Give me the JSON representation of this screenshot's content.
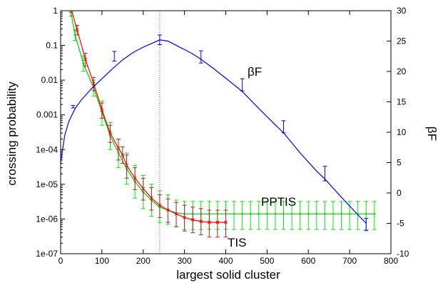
{
  "chart_data": {
    "type": "line",
    "title": "",
    "xlabel": "largest solid cluster",
    "ylabel_left": "crossing probability",
    "ylabel_right": "βF",
    "xlim": [
      0,
      800
    ],
    "ylim_left": [
      1e-07,
      1
    ],
    "yscale_left": "log",
    "ylim_right": [
      -10,
      30
    ],
    "grid": false,
    "x_ticks": [
      "0",
      "100",
      "200",
      "300",
      "400",
      "500",
      "600",
      "700",
      "800"
    ],
    "y_left_ticks": [
      "1e-07",
      "1e-06",
      "1e-05",
      "1e-04",
      "0.001",
      "0.01",
      "0.1",
      "1"
    ],
    "y_right_ticks": [
      "-10",
      "-5",
      "0",
      "5",
      "10",
      "15",
      "20",
      "25",
      "30"
    ],
    "vertical_marker_x": 240,
    "annotations": [
      {
        "text": "βF",
        "series": "βF"
      },
      {
        "text": "PPTIS",
        "series": "PPTIS"
      },
      {
        "text": "TIS",
        "series": "TIS"
      }
    ],
    "series": [
      {
        "name": "TIS",
        "axis": "left",
        "color": "#ff0000",
        "error_color": "#a52a2a",
        "points": [
          {
            "x": 25,
            "y": 1.2,
            "lo": 0.9,
            "hi": 1.5
          },
          {
            "x": 40,
            "y": 0.28,
            "lo": 0.2,
            "hi": 0.38
          },
          {
            "x": 60,
            "y": 0.04,
            "lo": 0.025,
            "hi": 0.06
          },
          {
            "x": 80,
            "y": 0.008,
            "lo": 0.005,
            "hi": 0.012
          },
          {
            "x": 100,
            "y": 0.0014,
            "lo": 0.0008,
            "hi": 0.0022
          },
          {
            "x": 120,
            "y": 0.0003,
            "lo": 0.00016,
            "hi": 0.0005
          },
          {
            "x": 140,
            "y": 0.00011,
            "lo": 5e-05,
            "hi": 0.0002
          },
          {
            "x": 150,
            "y": 7e-05,
            "lo": 4e-05,
            "hi": 0.00012
          },
          {
            "x": 160,
            "y": 3.5e-05,
            "lo": 1.5e-05,
            "hi": 7e-05
          },
          {
            "x": 180,
            "y": 1.5e-05,
            "lo": 7e-06,
            "hi": 3e-05
          },
          {
            "x": 200,
            "y": 7.5e-06,
            "lo": 3.5e-06,
            "hi": 1.5e-05
          },
          {
            "x": 220,
            "y": 4e-06,
            "lo": 1.8e-06,
            "hi": 8e-06
          },
          {
            "x": 240,
            "y": 2.5e-06,
            "lo": 1.1e-06,
            "hi": 5e-06
          },
          {
            "x": 260,
            "y": 1.8e-06,
            "lo": 8e-07,
            "hi": 3.8e-06
          },
          {
            "x": 280,
            "y": 1.4e-06,
            "lo": 6e-07,
            "hi": 3e-06
          },
          {
            "x": 300,
            "y": 1.1e-06,
            "lo": 4.5e-07,
            "hi": 2.5e-06
          },
          {
            "x": 320,
            "y": 9.5e-07,
            "lo": 4e-07,
            "hi": 2.2e-06
          },
          {
            "x": 340,
            "y": 8.5e-07,
            "lo": 3.5e-07,
            "hi": 2e-06
          },
          {
            "x": 360,
            "y": 8e-07,
            "lo": 3e-07,
            "hi": 1.8e-06
          },
          {
            "x": 380,
            "y": 8e-07,
            "lo": 3e-07,
            "hi": 1.8e-06
          },
          {
            "x": 400,
            "y": 8e-07,
            "lo": 3e-07,
            "hi": 1.8e-06
          }
        ]
      },
      {
        "name": "PPTIS",
        "axis": "left",
        "color": "#00cc00",
        "error_color": "#00ee00",
        "points": [
          {
            "x": 25,
            "y": 0.9,
            "lo": 0.7,
            "hi": 1.1
          },
          {
            "x": 35,
            "y": 0.2,
            "lo": 0.14,
            "hi": 0.28
          },
          {
            "x": 55,
            "y": 0.03,
            "lo": 0.018,
            "hi": 0.05
          },
          {
            "x": 80,
            "y": 0.006,
            "lo": 0.0035,
            "hi": 0.01
          },
          {
            "x": 100,
            "y": 0.0012,
            "lo": 0.0005,
            "hi": 0.0025
          },
          {
            "x": 120,
            "y": 0.00025,
            "lo": 0.0001,
            "hi": 0.0006
          },
          {
            "x": 140,
            "y": 8e-05,
            "lo": 3e-05,
            "hi": 0.0002
          },
          {
            "x": 160,
            "y": 2.8e-05,
            "lo": 1e-05,
            "hi": 8e-05
          },
          {
            "x": 180,
            "y": 1.2e-05,
            "lo": 4e-06,
            "hi": 3.5e-05
          },
          {
            "x": 200,
            "y": 6e-06,
            "lo": 2e-06,
            "hi": 1.8e-05
          },
          {
            "x": 220,
            "y": 3.5e-06,
            "lo": 1.2e-06,
            "hi": 1e-05
          },
          {
            "x": 240,
            "y": 2.2e-06,
            "lo": 8e-07,
            "hi": 6.5e-06
          },
          {
            "x": 260,
            "y": 1.8e-06,
            "lo": 7e-07,
            "hi": 5e-06
          },
          {
            "x": 280,
            "y": 1.5e-06,
            "lo": 6e-07,
            "hi": 3.5e-06
          },
          {
            "x": 300,
            "y": 1.4e-06,
            "lo": 5e-07,
            "hi": 3.2e-06
          },
          {
            "x": 320,
            "y": 1.4e-06,
            "lo": 5e-07,
            "hi": 3.2e-06
          },
          {
            "x": 340,
            "y": 1.4e-06,
            "lo": 5e-07,
            "hi": 3.2e-06
          },
          {
            "x": 360,
            "y": 1.4e-06,
            "lo": 5e-07,
            "hi": 3.2e-06
          },
          {
            "x": 380,
            "y": 1.4e-06,
            "lo": 5e-07,
            "hi": 3.2e-06
          },
          {
            "x": 400,
            "y": 1.4e-06,
            "lo": 5e-07,
            "hi": 3.2e-06
          },
          {
            "x": 420,
            "y": 1.4e-06,
            "lo": 5e-07,
            "hi": 3.2e-06
          },
          {
            "x": 440,
            "y": 1.4e-06,
            "lo": 5e-07,
            "hi": 3.2e-06
          },
          {
            "x": 460,
            "y": 1.4e-06,
            "lo": 5e-07,
            "hi": 3.2e-06
          },
          {
            "x": 480,
            "y": 1.4e-06,
            "lo": 5e-07,
            "hi": 3.2e-06
          },
          {
            "x": 500,
            "y": 1.4e-06,
            "lo": 5e-07,
            "hi": 3.2e-06
          },
          {
            "x": 520,
            "y": 1.4e-06,
            "lo": 5e-07,
            "hi": 3.2e-06
          },
          {
            "x": 540,
            "y": 1.4e-06,
            "lo": 5e-07,
            "hi": 3.2e-06
          },
          {
            "x": 560,
            "y": 1.4e-06,
            "lo": 5e-07,
            "hi": 3.2e-06
          },
          {
            "x": 580,
            "y": 1.4e-06,
            "lo": 5e-07,
            "hi": 3.2e-06
          },
          {
            "x": 600,
            "y": 1.4e-06,
            "lo": 5e-07,
            "hi": 3.2e-06
          },
          {
            "x": 620,
            "y": 1.4e-06,
            "lo": 5e-07,
            "hi": 3.2e-06
          },
          {
            "x": 640,
            "y": 1.4e-06,
            "lo": 5e-07,
            "hi": 3.2e-06
          },
          {
            "x": 660,
            "y": 1.4e-06,
            "lo": 5e-07,
            "hi": 3.2e-06
          },
          {
            "x": 680,
            "y": 1.4e-06,
            "lo": 5e-07,
            "hi": 3.2e-06
          },
          {
            "x": 700,
            "y": 1.4e-06,
            "lo": 5e-07,
            "hi": 3.2e-06
          },
          {
            "x": 720,
            "y": 1.4e-06,
            "lo": 5e-07,
            "hi": 3.2e-06
          },
          {
            "x": 740,
            "y": 1.4e-06,
            "lo": 5e-07,
            "hi": 3.2e-06
          },
          {
            "x": 760,
            "y": 1.4e-06,
            "lo": 5e-07,
            "hi": 3.2e-06
          }
        ]
      },
      {
        "name": "βF",
        "axis": "right",
        "color": "#0000ff",
        "curve": [
          [
            0,
            5
          ],
          [
            10,
            9.5
          ],
          [
            20,
            11.8
          ],
          [
            35,
            13.9
          ],
          [
            50,
            15.3
          ],
          [
            75,
            17.2
          ],
          [
            100,
            18.8
          ],
          [
            125,
            20.4
          ],
          [
            150,
            21.9
          ],
          [
            175,
            23.1
          ],
          [
            200,
            24.0
          ],
          [
            220,
            24.6
          ],
          [
            240,
            25.2
          ],
          [
            260,
            25.0
          ],
          [
            280,
            24.3
          ],
          [
            300,
            23.6
          ],
          [
            320,
            22.9
          ],
          [
            340,
            22.0
          ],
          [
            370,
            20.5
          ],
          [
            400,
            18.9
          ],
          [
            440,
            16.7
          ],
          [
            480,
            13.9
          ],
          [
            520,
            11.2
          ],
          [
            540,
            9.9
          ],
          [
            580,
            6.6
          ],
          [
            620,
            3.6
          ],
          [
            640,
            2.3
          ],
          [
            680,
            -0.7
          ],
          [
            720,
            -3.6
          ],
          [
            740,
            -5.0
          ]
        ],
        "error_points": [
          {
            "x": 30,
            "y": 14.2,
            "err": 0.2
          },
          {
            "x": 130,
            "y": 22.5,
            "err": 0.8
          },
          {
            "x": 240,
            "y": 25.2,
            "err": 0.8
          },
          {
            "x": 340,
            "y": 22.4,
            "err": 1.0
          },
          {
            "x": 440,
            "y": 17.8,
            "err": 1.0
          },
          {
            "x": 540,
            "y": 10.9,
            "err": 1.0
          },
          {
            "x": 640,
            "y": 3.2,
            "err": 1.2
          },
          {
            "x": 740,
            "y": -5.2,
            "err": 1.0
          }
        ]
      }
    ]
  }
}
